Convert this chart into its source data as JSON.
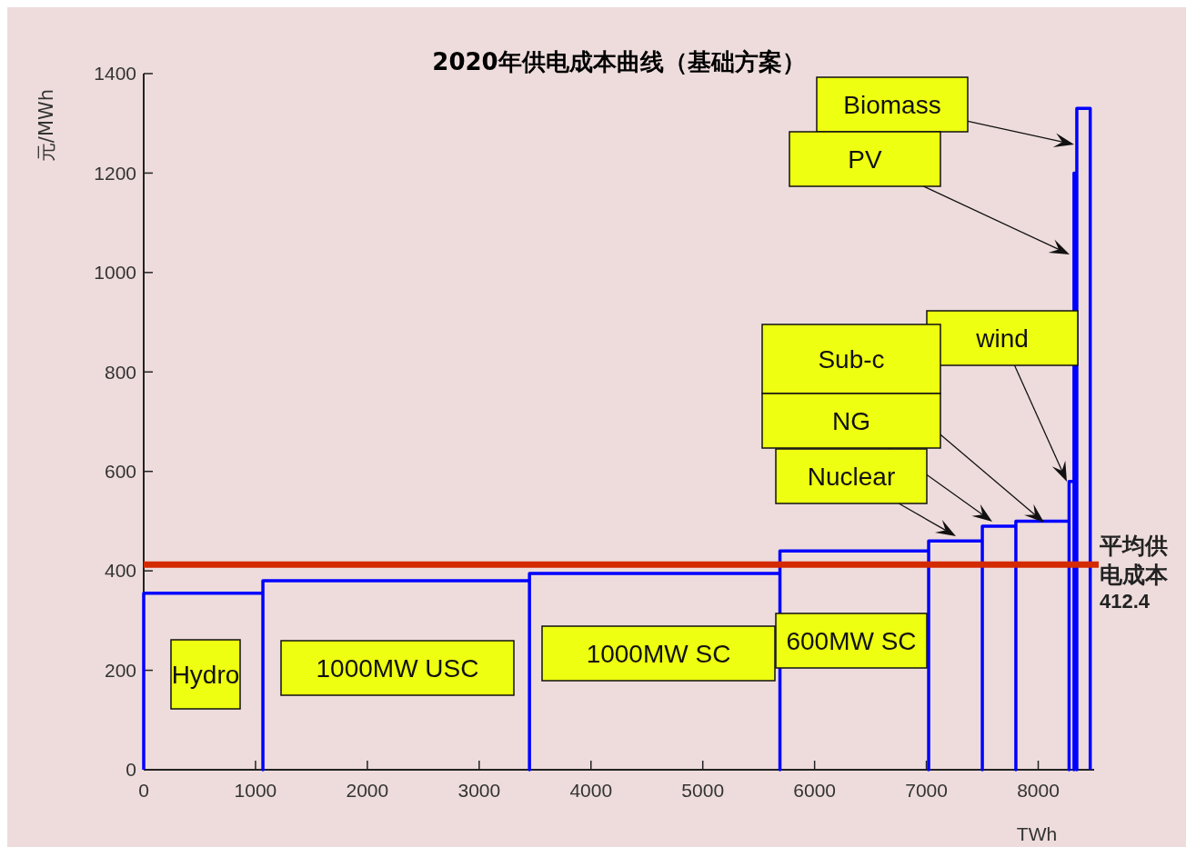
{
  "chart_data": {
    "type": "line",
    "title": "2020年供电成本曲线（基础方案）",
    "xlabel": "TWh",
    "ylabel": "元/MWh",
    "series": [
      {
        "color": "#0000ff",
        "x": [
          0,
          0,
          1066,
          1066,
          1066,
          3450,
          3450,
          3450,
          5690,
          5690,
          5690,
          7020,
          7020,
          7020,
          7500,
          7500,
          7500,
          7800,
          7800,
          7800,
          8276,
          8276,
          8276,
          8320,
          8320,
          8320,
          8345,
          8345,
          8345,
          8465,
          8465
        ],
        "values": [
          0,
          355,
          355,
          0,
          380,
          380,
          0,
          395,
          395,
          0,
          440,
          440,
          0,
          460,
          460,
          0,
          490,
          490,
          0,
          500,
          500,
          0,
          580,
          580,
          0,
          1200,
          1200,
          0,
          1330,
          1330,
          0
        ]
      }
    ],
    "xlim": [
      0,
      8500
    ],
    "ylim": [
      0,
      1400
    ],
    "xticks": [
      0,
      1000,
      2000,
      3000,
      4000,
      5000,
      6000,
      7000,
      8000
    ],
    "yticks": [
      0,
      200,
      400,
      600,
      800,
      1000,
      1200,
      1400
    ],
    "grid": false,
    "marker": "none",
    "ref_lines": [
      {
        "axis": "y",
        "value": 412.4,
        "label": "平均供电成本 412.4",
        "color": "#d42a00"
      }
    ],
    "annotations": [
      "Biomass",
      "PV",
      "wind",
      "Sub-c",
      "NG",
      "Nuclear",
      "Hydro",
      "1000MW USC",
      "1000MW SC",
      "600MW SC"
    ]
  }
}
